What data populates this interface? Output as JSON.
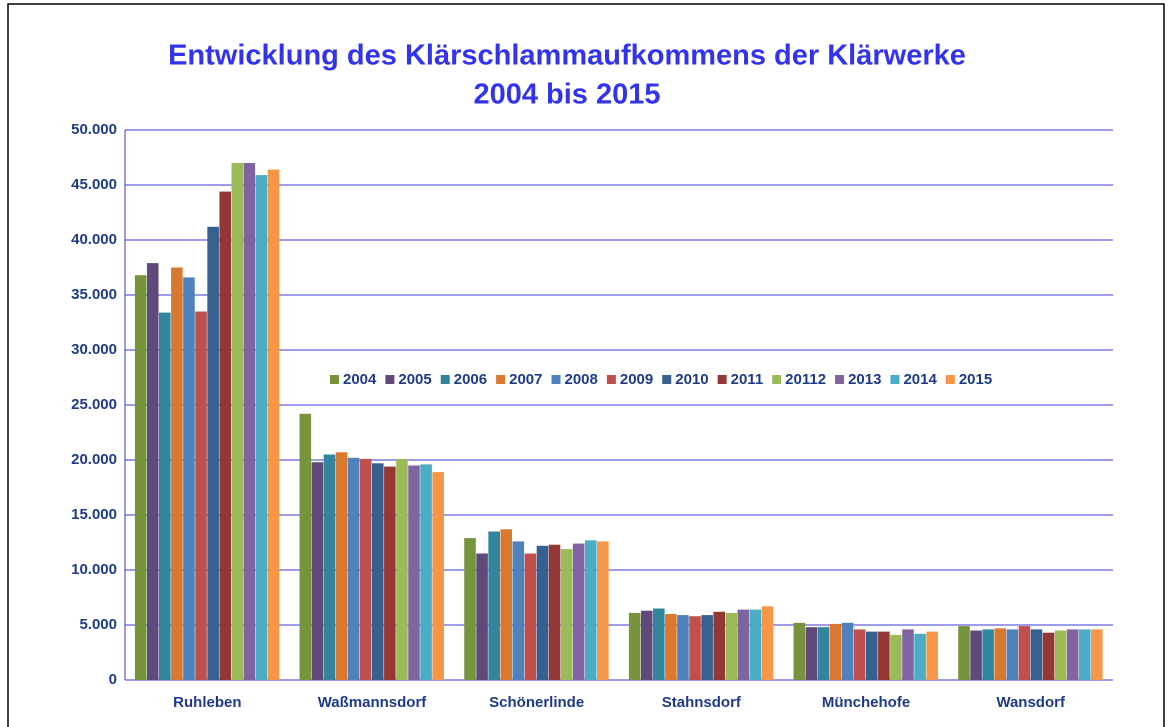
{
  "chart_data": {
    "type": "bar",
    "title": [
      "Entwicklung des Klärschlammaufkommens der Klärwerke",
      "2004 bis 2015"
    ],
    "categories": [
      "Ruhleben",
      "Waßmannsdorf",
      "Schönerlinde",
      "Stahnsdorf",
      "Münchehofe",
      "Wansdorf"
    ],
    "series": [
      {
        "name": "2004",
        "color": "#77933c",
        "values": [
          36800,
          24200,
          12900,
          6100,
          5200,
          4900
        ]
      },
      {
        "name": "2005",
        "color": "#604a7b",
        "values": [
          37900,
          19800,
          11500,
          6300,
          4800,
          4500
        ]
      },
      {
        "name": "2006",
        "color": "#31859c",
        "values": [
          33400,
          20500,
          13500,
          6500,
          4800,
          4600
        ]
      },
      {
        "name": "2007",
        "color": "#d9782f",
        "values": [
          37500,
          20700,
          13700,
          6000,
          5100,
          4700
        ]
      },
      {
        "name": "2008",
        "color": "#4f81bd",
        "values": [
          36600,
          20200,
          12600,
          5900,
          5200,
          4600
        ]
      },
      {
        "name": "2009",
        "color": "#c0504d",
        "values": [
          33500,
          20100,
          11500,
          5800,
          4600,
          4900
        ]
      },
      {
        "name": "2010",
        "color": "#36608f",
        "values": [
          41200,
          19700,
          12200,
          5900,
          4400,
          4600
        ]
      },
      {
        "name": "2011",
        "color": "#953735",
        "values": [
          44400,
          19400,
          12300,
          6200,
          4400,
          4300
        ]
      },
      {
        "name": "20112",
        "color": "#9bbb59",
        "values": [
          47000,
          20100,
          11900,
          6100,
          4100,
          4500
        ]
      },
      {
        "name": "2013",
        "color": "#8064a2",
        "values": [
          47000,
          19500,
          12400,
          6400,
          4600,
          4600
        ]
      },
      {
        "name": "2014",
        "color": "#4bacc6",
        "values": [
          45900,
          19600,
          12700,
          6400,
          4200,
          4600
        ]
      },
      {
        "name": "2015",
        "color": "#f79646",
        "values": [
          46400,
          18900,
          12600,
          6700,
          4400,
          4600
        ]
      }
    ],
    "ylim": [
      0,
      50000
    ],
    "yticks": [
      0,
      {
        "value": 5000,
        "label": "5.000"
      },
      {
        "value": 10000,
        "label": "10.000"
      },
      {
        "value": 15000,
        "label": "15.000"
      },
      {
        "value": 20000,
        "label": "20.000"
      },
      {
        "value": 25000,
        "label": "25.000"
      },
      {
        "value": 30000,
        "label": "30.000"
      },
      {
        "value": 35000,
        "label": "35.000"
      },
      {
        "value": 40000,
        "label": "40.000"
      },
      {
        "value": 45000,
        "label": "45.000"
      },
      {
        "value": 50000,
        "label": "50.000"
      }
    ],
    "grid": true,
    "legend": "center"
  }
}
